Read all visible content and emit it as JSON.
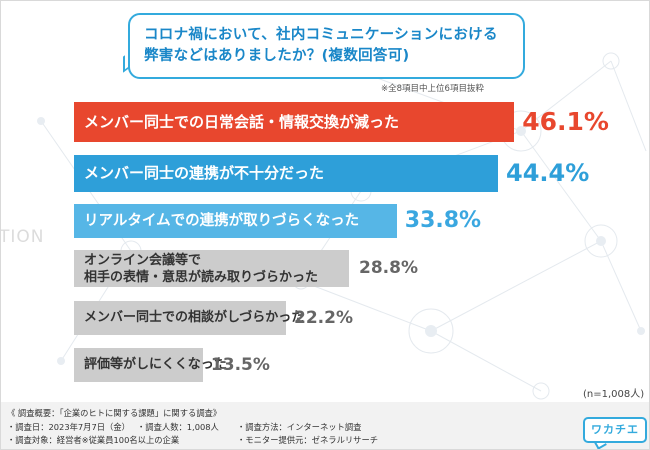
{
  "question": {
    "line1": "コロナ禍において、社内コミュニケーションにおける",
    "line2": "弊害などはありましたか？(複数回答可)"
  },
  "note": "※全8項目中上位6項目抜粋",
  "bg_word": "TION",
  "chart_data": {
    "type": "bar",
    "orientation": "horizontal",
    "title": "コロナ禍において、社内コミュニケーションにおける弊害などはありましたか？(複数回答可)",
    "unit": "%",
    "categories": [
      [
        "メンバー同士での日常会話・情報交換が減った"
      ],
      [
        "メンバー同士の連携が不十分だった"
      ],
      [
        "リアルタイムでの連携が取りづらくなった"
      ],
      [
        "オンライン会議等で",
        "相手の表情・意思が読み取りづらかった"
      ],
      [
        "メンバー同士での相談がしづらかった"
      ],
      [
        "評価等がしにくくなった"
      ]
    ],
    "values": [
      46.1,
      44.4,
      33.8,
      28.8,
      22.2,
      13.5
    ],
    "value_labels": [
      "46.1%",
      "44.4%",
      "33.8%",
      "28.8%",
      "22.2%",
      "13.5%"
    ],
    "colors": {
      "bars": [
        "#e8472e",
        "#2e9fd9",
        "#56b6e6",
        "#cccccc",
        "#cccccc",
        "#cccccc"
      ],
      "labels": [
        "#e8472e",
        "#2e9fd9",
        "#3aa7e0",
        "#666666",
        "#666666",
        "#666666"
      ]
    }
  },
  "sample_size": "(n=1,008人)",
  "footer": {
    "title": "《 調査概要：「企業のヒトに関する課題」に関する調査》",
    "items": [
      "・調査日：2023年7月7日（金）",
      "・調査人数：1,008人",
      "・調査方法：インターネット調査",
      "・調査対象：経営者※従業員100名以上の企業",
      "・モニター提供元：ゼネラルリサーチ"
    ]
  },
  "logo": "ワカチエ"
}
